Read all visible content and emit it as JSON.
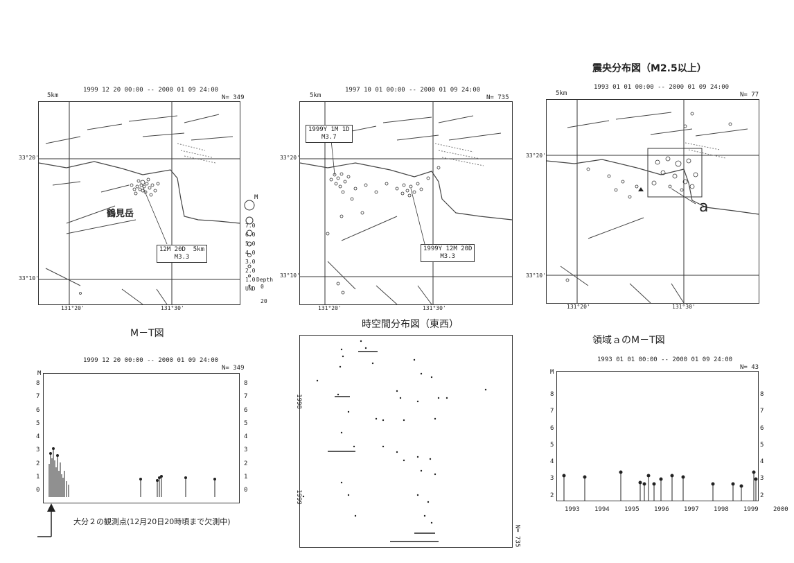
{
  "maps": [
    {
      "header": "1999 12 20 00:00 -- 2000 01 09 24:00",
      "count": "N= 349",
      "scale": "5km",
      "lat_top": "33°20'",
      "lat_bottom": "33°10'",
      "lon_left": "131°20'",
      "lon_right": "131°30'",
      "callout": "12M 20D  5km\nM3.3",
      "place": "鶴見岳"
    },
    {
      "header": "1997 10 01 00:00 -- 2000 01 09 24:00",
      "count": "N= 735",
      "scale": "5km",
      "lat_top": "33°20'",
      "lat_bottom": "33°10'",
      "lon_left": "131°20'",
      "lon_right": "131°30'",
      "callout_a": "1999Y 1M 1D\nM3.7",
      "callout_b": "1999Y 12M 20D\nM3.3"
    },
    {
      "title": "震央分布図（M2.5以上）",
      "header": "1993 01 01 00:00 -- 2000 01 09 24:00",
      "count": "N= 77",
      "scale": "5km",
      "lat_top": "33°20'",
      "lat_bottom": "33°10'",
      "lon_left": "131°20'",
      "lon_right": "131°30'",
      "region": "a"
    }
  ],
  "magnitude_legend": {
    "label": "M",
    "items": [
      "7.0",
      "6.0",
      "5.0",
      "4.0",
      "3.0",
      "2.0",
      "1.0",
      "UND"
    ],
    "depth_label": "Depth",
    "depth_items": [
      "0",
      "20"
    ]
  },
  "mt_left": {
    "title": "M－T図",
    "header": "1999 12 20 00:00 -- 2000 01 09 24:00",
    "count": "N= 349",
    "axis": "M",
    "yticks": [
      "8",
      "7",
      "6",
      "5",
      "4",
      "3",
      "2",
      "1",
      "0"
    ],
    "note": "大分２の観測点(12月20日20時頃まで欠測中)"
  },
  "space_time": {
    "title": "時空間分布図（東西）",
    "year_a": "1998",
    "year_b": "1999",
    "count": "N= 735"
  },
  "mt_right": {
    "title": "領域ａのM－T図",
    "header": "1993 01 01 00:00 -- 2000 01 09 24:00",
    "count": "N= 43",
    "axis": "M",
    "yticks": [
      "8",
      "7",
      "6",
      "5",
      "4",
      "3",
      "2"
    ],
    "xticks": [
      "1993",
      "1994",
      "1995",
      "1996",
      "1997",
      "1998",
      "1999",
      "2000"
    ]
  }
}
